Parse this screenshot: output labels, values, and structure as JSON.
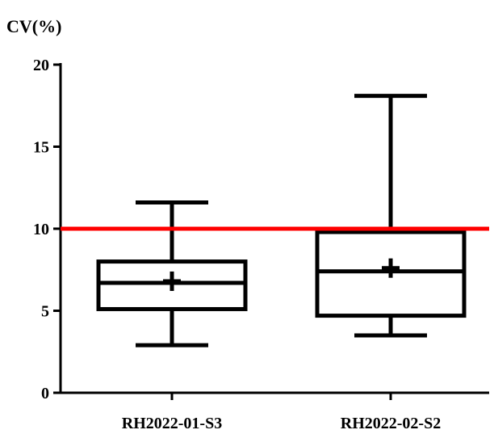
{
  "chart_data": {
    "type": "box",
    "ylabel": "CV(%)",
    "ylim": [
      0,
      20
    ],
    "yticks": [
      0,
      5,
      10,
      15,
      20
    ],
    "categories": [
      "RH2022-01-S3",
      "RH2022-02-S2"
    ],
    "boxes": [
      {
        "min": 2.9,
        "q1": 5.1,
        "median": 6.7,
        "q3": 8.0,
        "max": 11.6,
        "mean": 6.8
      },
      {
        "min": 3.5,
        "q1": 4.7,
        "median": 7.4,
        "q3": 9.8,
        "max": 18.1,
        "mean": 7.6
      }
    ],
    "reference_line": {
      "value": 10,
      "color": "#ff0000"
    },
    "colors": {
      "stroke": "#000000",
      "reference": "#ff0000"
    }
  }
}
